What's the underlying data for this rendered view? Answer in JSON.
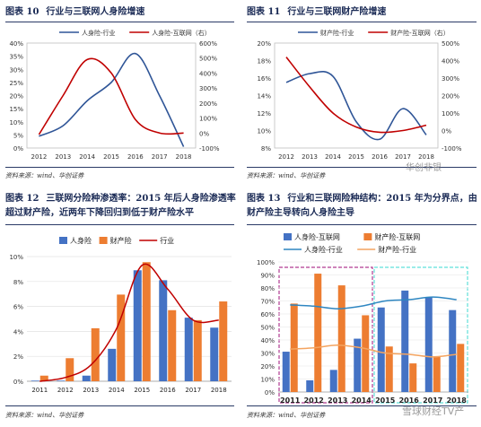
{
  "panels": {
    "p10": {
      "fig": "图表 10",
      "title": "行业与三联网人身险增速",
      "source": "资料来源：wind、华创证券"
    },
    "p11": {
      "fig": "图表 11",
      "title": "行业与三联网财产险增速",
      "source": "资料来源：wind、华创证券"
    },
    "p12": {
      "fig": "图表 12",
      "title_line1": "三联网分险种渗透率：2015 年后人身险渗透率",
      "title_line2": "超过财产险，近两年下降回归到低于财产险水平",
      "source": "资料来源：wind、华创证券"
    },
    "p13": {
      "fig": "图表 13",
      "title_line1": "行业和三联网险种结构：2015 年为分界点，由",
      "title_line2": "财产险主导转向人身险主导",
      "source": "资料来源：wind、华创证券"
    }
  },
  "watermarks": {
    "w1": "华创非银",
    "w2": "雪球财经TV产"
  },
  "colors": {
    "blue": "#2f5597",
    "red": "#c00000",
    "bar_blue": "#4472c4",
    "bar_orange": "#ed7d31",
    "teal": "#2e86c1",
    "orange_line": "#f4a460",
    "purple": "#b03a91",
    "cyan": "#5fe0d9"
  },
  "chart_data": [
    {
      "type": "line",
      "x": [
        "2012",
        "2013",
        "2014",
        "2015",
        "2016",
        "2017",
        "2018"
      ],
      "yticks_left": [
        "0%",
        "5%",
        "10%",
        "15%",
        "20%",
        "25%",
        "30%",
        "35%",
        "40%"
      ],
      "yticks_right": [
        "-100%",
        "0%",
        "100%",
        "200%",
        "300%",
        "400%",
        "500%",
        "600%"
      ],
      "ylim": [
        0,
        0.4
      ],
      "ylim_right": [
        -1.0,
        6.0
      ],
      "legend_placement": "top",
      "series": [
        {
          "name": "人身险-行业",
          "axis": "left",
          "color": "#2f5597",
          "values": [
            0.045,
            0.085,
            0.18,
            0.25,
            0.36,
            0.2,
            0.005
          ]
        },
        {
          "name": "人身险-互联网（右）",
          "axis": "right",
          "color": "#c00000",
          "values": [
            -0.1,
            2.5,
            4.9,
            4.0,
            0.9,
            0.0,
            0.0
          ]
        }
      ]
    },
    {
      "type": "line",
      "x": [
        "2012",
        "2013",
        "2014",
        "2015",
        "2016",
        "2017",
        "2018"
      ],
      "yticks_left": [
        "8%",
        "10%",
        "12%",
        "14%",
        "16%",
        "18%",
        "20%"
      ],
      "yticks_right": [
        "-100%",
        "0%",
        "100%",
        "200%",
        "300%",
        "400%",
        "500%"
      ],
      "ylim": [
        0.08,
        0.2
      ],
      "ylim_right": [
        -1.0,
        5.0
      ],
      "legend_placement": "top",
      "series": [
        {
          "name": "财产险-行业",
          "axis": "left",
          "color": "#2f5597",
          "values": [
            0.155,
            0.165,
            0.162,
            0.11,
            0.09,
            0.125,
            0.095
          ]
        },
        {
          "name": "财产险-互联网（右）",
          "axis": "right",
          "color": "#c00000",
          "values": [
            4.2,
            2.5,
            1.0,
            0.2,
            -0.1,
            0.0,
            0.3
          ]
        }
      ]
    },
    {
      "type": "bar",
      "categories": [
        "2011",
        "2012",
        "2013",
        "2014",
        "2015",
        "2016",
        "2017",
        "2018"
      ],
      "yticks": [
        "0%",
        "2%",
        "4%",
        "6%",
        "8%",
        "10%"
      ],
      "ylim": [
        0,
        0.1
      ],
      "legend_placement": "top",
      "series": [
        {
          "name": "人身险",
          "kind": "bar",
          "color": "#4472c4",
          "values": [
            0.0005,
            0.0005,
            0.0045,
            0.026,
            0.089,
            0.081,
            0.051,
            0.043
          ]
        },
        {
          "name": "财产险",
          "kind": "bar",
          "color": "#ed7d31",
          "values": [
            0.0045,
            0.0185,
            0.0425,
            0.0695,
            0.0955,
            0.057,
            0.049,
            0.064
          ]
        },
        {
          "name": "行业",
          "kind": "line",
          "color": "#c00000",
          "values": [
            0.0,
            0.003,
            0.013,
            0.042,
            0.093,
            0.074,
            0.049,
            0.049
          ]
        }
      ]
    },
    {
      "type": "bar",
      "categories": [
        "2011",
        "2012",
        "2013",
        "2014",
        "2015",
        "2016",
        "2017",
        "2018"
      ],
      "yticks": [
        "0%",
        "10%",
        "20%",
        "30%",
        "40%",
        "50%",
        "60%",
        "70%",
        "80%",
        "90%",
        "100%"
      ],
      "ylim": [
        0,
        1.0
      ],
      "legend_placement": "top",
      "annotations": [
        "dashed box around 2011-2014",
        "dashed box around 2015-2018"
      ],
      "series": [
        {
          "name": "人身险-互联网",
          "kind": "bar",
          "color": "#4472c4",
          "values": [
            0.31,
            0.09,
            0.17,
            0.41,
            0.65,
            0.78,
            0.73,
            0.63
          ]
        },
        {
          "name": "财产险-互联网",
          "kind": "bar",
          "color": "#ed7d31",
          "values": [
            0.68,
            0.91,
            0.82,
            0.59,
            0.35,
            0.22,
            0.27,
            0.37
          ]
        },
        {
          "name": "人身险-行业",
          "kind": "line",
          "color": "#2e86c1",
          "values": [
            0.67,
            0.66,
            0.64,
            0.66,
            0.7,
            0.71,
            0.73,
            0.71
          ]
        },
        {
          "name": "财产险-行业",
          "kind": "line",
          "color": "#f4a460",
          "values": [
            0.33,
            0.34,
            0.36,
            0.34,
            0.3,
            0.29,
            0.27,
            0.29
          ]
        }
      ]
    }
  ]
}
